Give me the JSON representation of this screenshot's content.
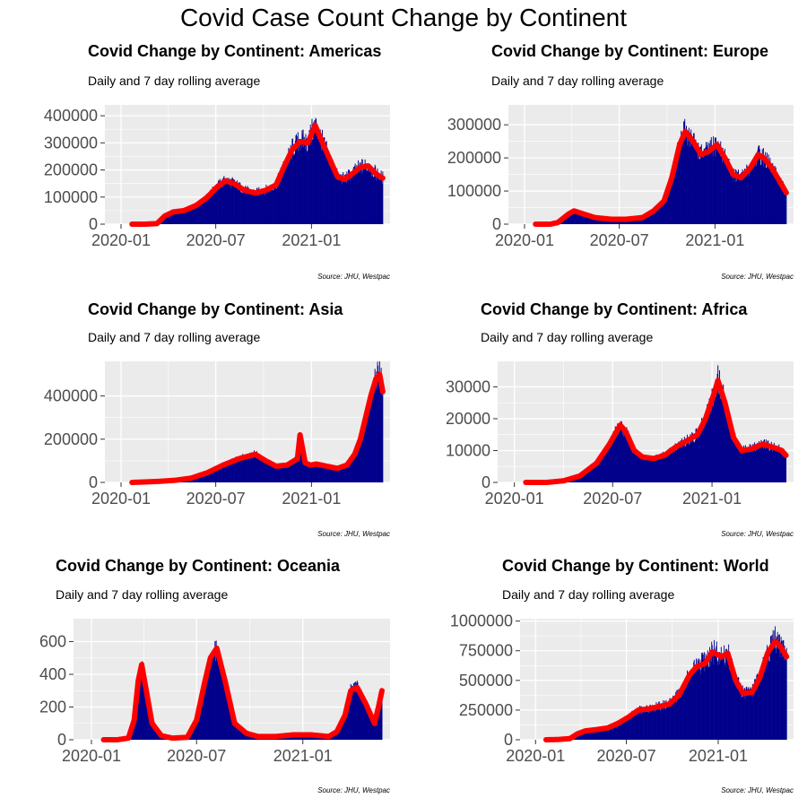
{
  "title": "Covid Case Count Change by Continent",
  "colors": {
    "panel_bg": "#EBEBEB",
    "grid": "#FFFFFF",
    "bars": "#00008B",
    "line": "#FF0000",
    "axis_text": "#4D4D4D"
  },
  "chart_data": [
    {
      "type": "bar",
      "title": "Covid Change by Continent: Americas",
      "subtitle": "Daily and 7 day rolling average",
      "caption": "Source: JHU, Westpac",
      "xlabel": "",
      "ylabel": "",
      "x_ticks": [
        "2020-01",
        "2020-07",
        "2021-01"
      ],
      "y_ticks": [
        0,
        100000,
        200000,
        300000,
        400000
      ],
      "ylim": [
        0,
        440000
      ],
      "series": [
        {
          "dates": [
            "2020-01-22",
            "2020-02-15",
            "2020-03-10",
            "2020-03-25",
            "2020-04-10",
            "2020-05-01",
            "2020-05-25",
            "2020-06-15",
            "2020-07-05",
            "2020-07-20",
            "2020-08-05",
            "2020-08-25",
            "2020-09-15",
            "2020-10-05",
            "2020-10-25",
            "2020-11-10",
            "2020-11-25",
            "2020-12-10",
            "2020-12-25",
            "2021-01-08",
            "2021-01-20",
            "2021-02-05",
            "2021-02-20",
            "2021-03-05",
            "2021-03-20",
            "2021-04-05",
            "2021-04-20",
            "2021-05-05",
            "2021-05-18"
          ],
          "values": [
            0,
            0,
            2000,
            30000,
            45000,
            50000,
            70000,
            100000,
            140000,
            160000,
            150000,
            125000,
            115000,
            125000,
            145000,
            215000,
            275000,
            305000,
            300000,
            365000,
            310000,
            240000,
            175000,
            165000,
            185000,
            210000,
            215000,
            185000,
            170000
          ]
        }
      ]
    },
    {
      "type": "bar",
      "title": "Covid Change by Continent: Europe",
      "subtitle": "Daily and 7 day rolling average",
      "caption": "Source: JHU, Westpac",
      "xlabel": "",
      "ylabel": "",
      "x_ticks": [
        "2020-01",
        "2020-07",
        "2021-01"
      ],
      "y_ticks": [
        0,
        100000,
        200000,
        300000
      ],
      "ylim": [
        0,
        360000
      ],
      "series": [
        {
          "dates": [
            "2020-01-22",
            "2020-02-20",
            "2020-03-05",
            "2020-03-25",
            "2020-04-05",
            "2020-04-25",
            "2020-05-15",
            "2020-06-15",
            "2020-07-15",
            "2020-08-15",
            "2020-09-05",
            "2020-09-25",
            "2020-10-10",
            "2020-10-25",
            "2020-11-05",
            "2020-11-20",
            "2020-12-05",
            "2020-12-20",
            "2021-01-05",
            "2021-01-20",
            "2021-02-05",
            "2021-02-20",
            "2021-03-10",
            "2021-03-25",
            "2021-04-05",
            "2021-04-20",
            "2021-05-05",
            "2021-05-18"
          ],
          "values": [
            0,
            0,
            5000,
            30000,
            40000,
            30000,
            20000,
            15000,
            15000,
            20000,
            40000,
            70000,
            140000,
            240000,
            280000,
            250000,
            210000,
            220000,
            240000,
            200000,
            150000,
            140000,
            170000,
            210000,
            200000,
            170000,
            130000,
            95000
          ]
        }
      ]
    },
    {
      "type": "bar",
      "title": "Covid Change by Continent: Asia",
      "subtitle": "Daily and 7 day rolling average",
      "caption": "Source: JHU, Westpac",
      "xlabel": "",
      "ylabel": "",
      "x_ticks": [
        "2020-01",
        "2020-07",
        "2021-01"
      ],
      "y_ticks": [
        0,
        200000,
        400000
      ],
      "ylim": [
        0,
        560000
      ],
      "series": [
        {
          "dates": [
            "2020-01-22",
            "2020-02-15",
            "2020-03-15",
            "2020-04-15",
            "2020-05-15",
            "2020-06-15",
            "2020-07-15",
            "2020-08-15",
            "2020-09-15",
            "2020-10-05",
            "2020-10-25",
            "2020-11-15",
            "2020-12-05",
            "2020-12-10",
            "2020-12-20",
            "2020-12-30",
            "2021-01-10",
            "2021-01-30",
            "2021-02-20",
            "2021-03-10",
            "2021-03-25",
            "2021-04-05",
            "2021-04-15",
            "2021-04-25",
            "2021-05-05",
            "2021-05-12",
            "2021-05-18"
          ],
          "values": [
            0,
            2000,
            5000,
            10000,
            20000,
            45000,
            80000,
            110000,
            130000,
            100000,
            75000,
            80000,
            110000,
            220000,
            90000,
            80000,
            85000,
            75000,
            65000,
            80000,
            130000,
            200000,
            300000,
            400000,
            480000,
            500000,
            420000
          ]
        }
      ]
    },
    {
      "type": "bar",
      "title": "Covid Change by Continent: Africa",
      "subtitle": "Daily and 7 day rolling average",
      "caption": "Source: JHU, Westpac",
      "xlabel": "",
      "ylabel": "",
      "x_ticks": [
        "2020-01",
        "2020-07",
        "2021-01"
      ],
      "y_ticks": [
        0,
        10000,
        20000,
        30000
      ],
      "ylim": [
        0,
        38000
      ],
      "series": [
        {
          "dates": [
            "2020-01-22",
            "2020-03-01",
            "2020-04-01",
            "2020-05-01",
            "2020-06-01",
            "2020-06-25",
            "2020-07-15",
            "2020-07-25",
            "2020-08-10",
            "2020-08-25",
            "2020-09-15",
            "2020-10-05",
            "2020-10-25",
            "2020-11-15",
            "2020-12-05",
            "2020-12-20",
            "2021-01-05",
            "2021-01-12",
            "2021-01-25",
            "2021-02-10",
            "2021-02-25",
            "2021-03-15",
            "2021-04-05",
            "2021-04-25",
            "2021-05-10",
            "2021-05-18"
          ],
          "values": [
            0,
            0,
            500,
            2000,
            6000,
            12000,
            18000,
            16000,
            10000,
            8000,
            7500,
            8500,
            11000,
            13000,
            15000,
            20000,
            28000,
            32000,
            25000,
            14000,
            10000,
            10500,
            12000,
            11000,
            10000,
            8500
          ]
        }
      ]
    },
    {
      "type": "bar",
      "title": "Covid Change by Continent: Oceania",
      "subtitle": "Daily and 7 day rolling average",
      "caption": "Source: JHU, Westpac",
      "xlabel": "",
      "ylabel": "",
      "x_ticks": [
        "2020-01",
        "2020-07",
        "2021-01"
      ],
      "y_ticks": [
        0,
        200,
        400,
        600
      ],
      "ylim": [
        0,
        740
      ],
      "series": [
        {
          "dates": [
            "2020-01-22",
            "2020-02-15",
            "2020-03-05",
            "2020-03-15",
            "2020-03-22",
            "2020-03-28",
            "2020-04-05",
            "2020-04-15",
            "2020-05-01",
            "2020-05-20",
            "2020-06-15",
            "2020-07-01",
            "2020-07-15",
            "2020-07-25",
            "2020-08-05",
            "2020-08-20",
            "2020-09-05",
            "2020-09-25",
            "2020-10-15",
            "2020-11-15",
            "2020-12-15",
            "2021-01-15",
            "2021-02-15",
            "2021-03-01",
            "2021-03-15",
            "2021-03-25",
            "2021-04-05",
            "2021-04-20",
            "2021-05-05",
            "2021-05-12",
            "2021-05-18"
          ],
          "values": [
            0,
            0,
            10,
            120,
            360,
            460,
            300,
            100,
            25,
            10,
            15,
            120,
            350,
            500,
            560,
            350,
            100,
            40,
            20,
            20,
            30,
            30,
            20,
            50,
            150,
            300,
            320,
            220,
            100,
            200,
            300
          ]
        }
      ]
    },
    {
      "type": "bar",
      "title": "Covid Change by Continent: World",
      "subtitle": "Daily and 7 day rolling average",
      "caption": "Source: JHU, Westpac",
      "xlabel": "",
      "ylabel": "",
      "x_ticks": [
        "2020-01",
        "2020-07",
        "2021-01"
      ],
      "y_ticks": [
        0,
        250000,
        500000,
        750000,
        1000000
      ],
      "ylim": [
        0,
        1020000
      ],
      "series": [
        {
          "dates": [
            "2020-01-22",
            "2020-02-15",
            "2020-03-10",
            "2020-03-25",
            "2020-04-10",
            "2020-05-01",
            "2020-05-25",
            "2020-06-15",
            "2020-07-05",
            "2020-07-25",
            "2020-08-15",
            "2020-09-05",
            "2020-09-25",
            "2020-10-15",
            "2020-11-05",
            "2020-11-20",
            "2020-12-05",
            "2020-12-20",
            "2021-01-08",
            "2021-01-20",
            "2021-02-05",
            "2021-02-20",
            "2021-03-10",
            "2021-03-25",
            "2021-04-10",
            "2021-04-25",
            "2021-05-05",
            "2021-05-18"
          ],
          "values": [
            0,
            2000,
            10000,
            50000,
            75000,
            85000,
            100000,
            140000,
            190000,
            250000,
            260000,
            280000,
            300000,
            380000,
            550000,
            620000,
            640000,
            740000,
            700000,
            730000,
            500000,
            390000,
            400000,
            520000,
            730000,
            830000,
            790000,
            700000
          ]
        }
      ]
    }
  ]
}
